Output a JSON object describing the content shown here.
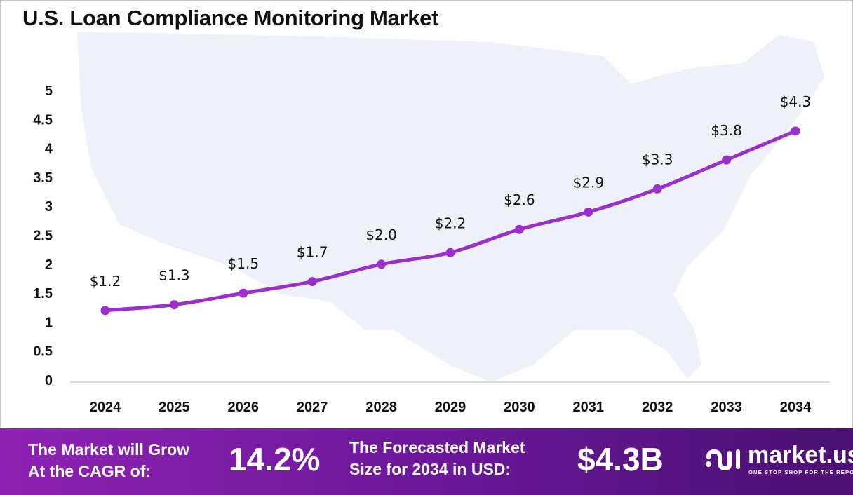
{
  "chart_data": {
    "type": "line",
    "title": "U.S. Loan Compliance Monitoring Market",
    "categories": [
      "2024",
      "2025",
      "2026",
      "2027",
      "2028",
      "2029",
      "2030",
      "2031",
      "2032",
      "2033",
      "2034"
    ],
    "values": [
      1.2,
      1.3,
      1.5,
      1.7,
      2.0,
      2.2,
      2.6,
      2.9,
      3.3,
      3.8,
      4.3
    ],
    "data_labels": [
      "$1.2",
      "$1.3",
      "$1.5",
      "$1.7",
      "$2.0",
      "$2.2",
      "$2.6",
      "$2.9",
      "$3.3",
      "$3.8",
      "$4.3"
    ],
    "yticks": [
      "0",
      "0.5",
      "1",
      "1.5",
      "2",
      "2.5",
      "3",
      "3.5",
      "4",
      "4.5",
      "5"
    ],
    "ylim": [
      0,
      5
    ],
    "xlabel": "",
    "ylabel": "",
    "grid": false,
    "line_color": "#9b2fc9",
    "background_image": "us-map-silhouette"
  },
  "footer": {
    "cagr_label_1": "The Market will Grow",
    "cagr_label_2": "At the CAGR of:",
    "cagr_value": "14.2%",
    "forecast_label_1": "The Forecasted Market",
    "forecast_label_2": "Size for 2034 in USD:",
    "forecast_value": "$4.3B",
    "logo_name": "market.us",
    "logo_tagline": "ONE STOP SHOP FOR THE REPORTS"
  }
}
